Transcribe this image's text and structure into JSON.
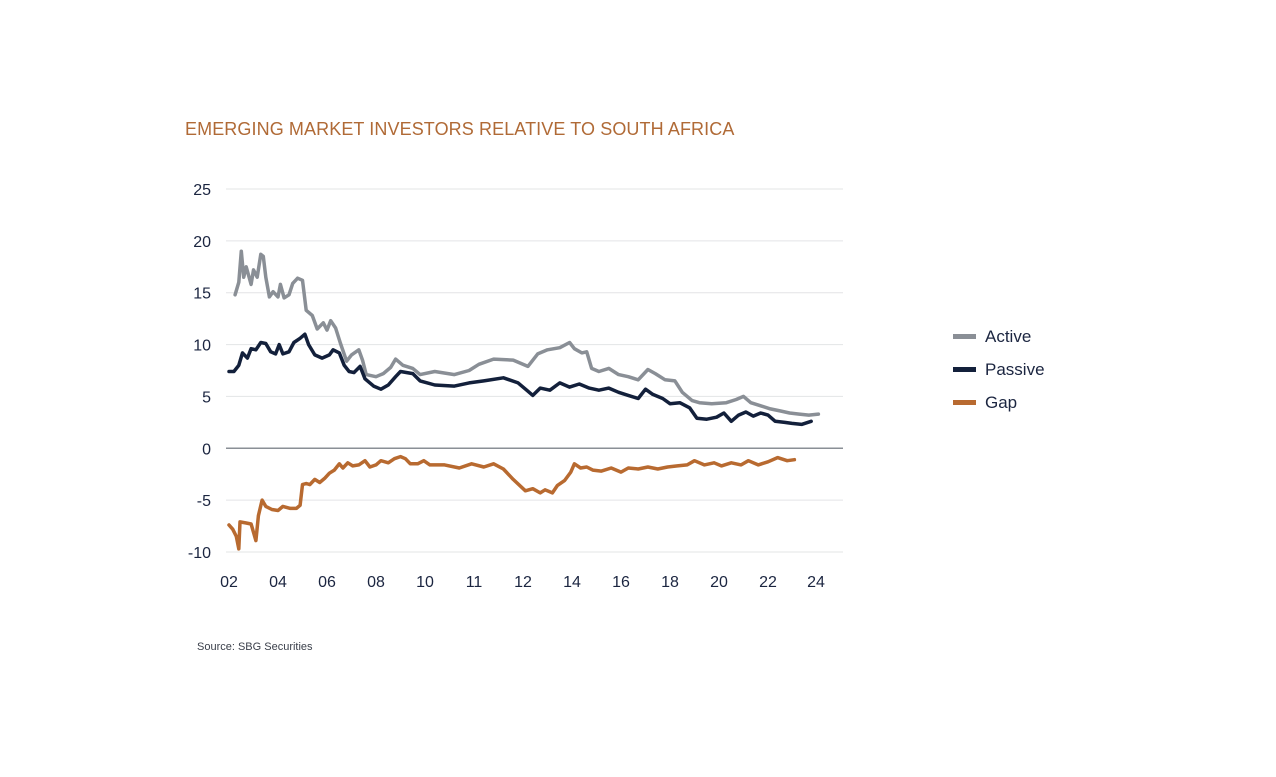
{
  "page": {
    "title": "EMERGING MARKET INVESTORS RELATIVE TO SOUTH AFRICA",
    "source": "Source: SBG Securities",
    "title_color": "#b06a36"
  },
  "chart_data": {
    "type": "line",
    "title": "EMERGING MARKET INVESTORS RELATIVE TO SOUTH AFRICA",
    "xlabel": "",
    "ylabel": "",
    "xlim": [
      2002,
      2025
    ],
    "ylim": [
      -10,
      25
    ],
    "yticks": [
      25,
      20,
      15,
      10,
      5,
      0,
      -5,
      -10
    ],
    "xtick_labels": [
      "02",
      "04",
      "06",
      "08",
      "10",
      "11",
      "12",
      "14",
      "16",
      "18",
      "20",
      "22",
      "24"
    ],
    "xtick_values": [
      2002,
      2004,
      2006,
      2008,
      2010,
      2011,
      2012,
      2014,
      2016,
      2018,
      2020,
      2022,
      2024
    ],
    "grid": "horizontal",
    "legend_position": "right",
    "series": [
      {
        "name": "Active",
        "color": "#8a8f96",
        "points": [
          [
            2002.25,
            14.8
          ],
          [
            2002.4,
            16
          ],
          [
            2002.5,
            19
          ],
          [
            2002.6,
            16.5
          ],
          [
            2002.7,
            17.5
          ],
          [
            2002.9,
            15.8
          ],
          [
            2003.0,
            17.2
          ],
          [
            2003.15,
            16.5
          ],
          [
            2003.3,
            18.7
          ],
          [
            2003.4,
            18.5
          ],
          [
            2003.5,
            16.5
          ],
          [
            2003.65,
            14.6
          ],
          [
            2003.8,
            15.1
          ],
          [
            2004.0,
            14.6
          ],
          [
            2004.1,
            15.8
          ],
          [
            2004.25,
            14.5
          ],
          [
            2004.45,
            14.8
          ],
          [
            2004.6,
            15.9
          ],
          [
            2004.8,
            16.4
          ],
          [
            2005.0,
            16.2
          ],
          [
            2005.15,
            13.3
          ],
          [
            2005.4,
            12.8
          ],
          [
            2005.6,
            11.5
          ],
          [
            2005.85,
            12.1
          ],
          [
            2006.0,
            11.4
          ],
          [
            2006.15,
            12.3
          ],
          [
            2006.35,
            11.6
          ],
          [
            2006.55,
            10.1
          ],
          [
            2006.8,
            8.4
          ],
          [
            2007.0,
            9.0
          ],
          [
            2007.3,
            9.5
          ],
          [
            2007.45,
            8.5
          ],
          [
            2007.6,
            7.1
          ],
          [
            2008.0,
            6.9
          ],
          [
            2008.3,
            7.2
          ],
          [
            2008.6,
            7.8
          ],
          [
            2008.8,
            8.6
          ],
          [
            2009.1,
            8.0
          ],
          [
            2009.5,
            7.7
          ],
          [
            2009.8,
            7.1
          ],
          [
            2010.2,
            7.4
          ],
          [
            2010.6,
            7.1
          ],
          [
            2010.9,
            7.5
          ],
          [
            2011.1,
            8.1
          ],
          [
            2011.4,
            8.6
          ],
          [
            2011.8,
            8.5
          ],
          [
            2012.2,
            7.9
          ],
          [
            2012.6,
            9.1
          ],
          [
            2013.0,
            9.5
          ],
          [
            2013.5,
            9.7
          ],
          [
            2013.9,
            10.2
          ],
          [
            2014.1,
            9.6
          ],
          [
            2014.4,
            9.2
          ],
          [
            2014.6,
            9.3
          ],
          [
            2014.8,
            7.7
          ],
          [
            2015.1,
            7.4
          ],
          [
            2015.5,
            7.7
          ],
          [
            2015.9,
            7.1
          ],
          [
            2016.3,
            6.9
          ],
          [
            2016.7,
            6.6
          ],
          [
            2017.1,
            7.6
          ],
          [
            2017.4,
            7.2
          ],
          [
            2017.8,
            6.6
          ],
          [
            2018.2,
            6.5
          ],
          [
            2018.5,
            5.4
          ],
          [
            2018.9,
            4.6
          ],
          [
            2019.2,
            4.4
          ],
          [
            2019.7,
            4.3
          ],
          [
            2020.3,
            4.4
          ],
          [
            2020.7,
            4.7
          ],
          [
            2021.0,
            5.0
          ],
          [
            2021.3,
            4.4
          ],
          [
            2021.7,
            4.1
          ],
          [
            2022.1,
            3.8
          ],
          [
            2022.5,
            3.6
          ],
          [
            2022.9,
            3.4
          ],
          [
            2023.3,
            3.3
          ],
          [
            2023.7,
            3.2
          ],
          [
            2024.1,
            3.3
          ]
        ]
      },
      {
        "name": "Passive",
        "color": "#13203b",
        "points": [
          [
            2002.0,
            7.4
          ],
          [
            2002.2,
            7.4
          ],
          [
            2002.4,
            8.0
          ],
          [
            2002.55,
            9.2
          ],
          [
            2002.75,
            8.7
          ],
          [
            2002.9,
            9.6
          ],
          [
            2003.1,
            9.5
          ],
          [
            2003.3,
            10.2
          ],
          [
            2003.5,
            10.1
          ],
          [
            2003.7,
            9.3
          ],
          [
            2003.9,
            9.1
          ],
          [
            2004.05,
            10.0
          ],
          [
            2004.2,
            9.1
          ],
          [
            2004.45,
            9.3
          ],
          [
            2004.65,
            10.2
          ],
          [
            2004.9,
            10.6
          ],
          [
            2005.1,
            11.0
          ],
          [
            2005.25,
            10.0
          ],
          [
            2005.5,
            9.0
          ],
          [
            2005.8,
            8.7
          ],
          [
            2006.1,
            9.0
          ],
          [
            2006.25,
            9.5
          ],
          [
            2006.5,
            9.2
          ],
          [
            2006.7,
            8.0
          ],
          [
            2006.9,
            7.4
          ],
          [
            2007.1,
            7.3
          ],
          [
            2007.35,
            7.9
          ],
          [
            2007.55,
            6.7
          ],
          [
            2007.9,
            6.0
          ],
          [
            2008.2,
            5.7
          ],
          [
            2008.5,
            6.1
          ],
          [
            2008.8,
            6.9
          ],
          [
            2009.0,
            7.4
          ],
          [
            2009.5,
            7.2
          ],
          [
            2009.8,
            6.5
          ],
          [
            2010.2,
            6.1
          ],
          [
            2010.6,
            6.0
          ],
          [
            2010.9,
            6.3
          ],
          [
            2011.2,
            6.5
          ],
          [
            2011.6,
            6.8
          ],
          [
            2011.9,
            6.3
          ],
          [
            2012.2,
            5.5
          ],
          [
            2012.4,
            5.1
          ],
          [
            2012.7,
            5.8
          ],
          [
            2013.1,
            5.6
          ],
          [
            2013.5,
            6.3
          ],
          [
            2013.9,
            5.9
          ],
          [
            2014.3,
            6.2
          ],
          [
            2014.7,
            5.8
          ],
          [
            2015.1,
            5.6
          ],
          [
            2015.5,
            5.8
          ],
          [
            2015.9,
            5.4
          ],
          [
            2016.3,
            5.1
          ],
          [
            2016.7,
            4.8
          ],
          [
            2017.0,
            5.7
          ],
          [
            2017.3,
            5.2
          ],
          [
            2017.7,
            4.8
          ],
          [
            2018.0,
            4.3
          ],
          [
            2018.4,
            4.4
          ],
          [
            2018.8,
            3.9
          ],
          [
            2019.1,
            2.9
          ],
          [
            2019.5,
            2.8
          ],
          [
            2019.9,
            3.0
          ],
          [
            2020.2,
            3.4
          ],
          [
            2020.5,
            2.6
          ],
          [
            2020.8,
            3.2
          ],
          [
            2021.1,
            3.5
          ],
          [
            2021.4,
            3.1
          ],
          [
            2021.7,
            3.4
          ],
          [
            2022.0,
            3.2
          ],
          [
            2022.3,
            2.6
          ],
          [
            2022.7,
            2.5
          ],
          [
            2023.0,
            2.4
          ],
          [
            2023.4,
            2.3
          ],
          [
            2023.8,
            2.6
          ]
        ]
      },
      {
        "name": "Gap",
        "color": "#b86a30",
        "points": [
          [
            2002.0,
            -7.4
          ],
          [
            2002.15,
            -7.8
          ],
          [
            2002.3,
            -8.5
          ],
          [
            2002.4,
            -9.7
          ],
          [
            2002.45,
            -7.1
          ],
          [
            2002.7,
            -7.2
          ],
          [
            2002.9,
            -7.3
          ],
          [
            2003.1,
            -8.9
          ],
          [
            2003.2,
            -6.5
          ],
          [
            2003.35,
            -5.0
          ],
          [
            2003.5,
            -5.6
          ],
          [
            2003.75,
            -5.9
          ],
          [
            2004.0,
            -6.0
          ],
          [
            2004.2,
            -5.6
          ],
          [
            2004.5,
            -5.8
          ],
          [
            2004.75,
            -5.8
          ],
          [
            2004.9,
            -5.5
          ],
          [
            2005.0,
            -3.5
          ],
          [
            2005.15,
            -3.4
          ],
          [
            2005.3,
            -3.5
          ],
          [
            2005.5,
            -3.0
          ],
          [
            2005.7,
            -3.3
          ],
          [
            2005.9,
            -2.9
          ],
          [
            2006.1,
            -2.4
          ],
          [
            2006.3,
            -2.1
          ],
          [
            2006.5,
            -1.5
          ],
          [
            2006.65,
            -1.9
          ],
          [
            2006.85,
            -1.4
          ],
          [
            2007.05,
            -1.7
          ],
          [
            2007.3,
            -1.6
          ],
          [
            2007.55,
            -1.2
          ],
          [
            2007.75,
            -1.8
          ],
          [
            2008.0,
            -1.6
          ],
          [
            2008.2,
            -1.2
          ],
          [
            2008.5,
            -1.4
          ],
          [
            2008.75,
            -1.0
          ],
          [
            2009.0,
            -0.8
          ],
          [
            2009.2,
            -1.0
          ],
          [
            2009.4,
            -1.5
          ],
          [
            2009.7,
            -1.5
          ],
          [
            2009.95,
            -1.2
          ],
          [
            2010.1,
            -1.6
          ],
          [
            2010.4,
            -1.6
          ],
          [
            2010.7,
            -1.9
          ],
          [
            2010.95,
            -1.5
          ],
          [
            2011.2,
            -1.8
          ],
          [
            2011.4,
            -1.5
          ],
          [
            2011.6,
            -2.0
          ],
          [
            2011.8,
            -3.0
          ],
          [
            2012.1,
            -4.1
          ],
          [
            2012.4,
            -3.9
          ],
          [
            2012.7,
            -4.3
          ],
          [
            2012.9,
            -4.0
          ],
          [
            2013.2,
            -4.3
          ],
          [
            2013.4,
            -3.6
          ],
          [
            2013.7,
            -3.1
          ],
          [
            2013.95,
            -2.3
          ],
          [
            2014.1,
            -1.5
          ],
          [
            2014.35,
            -1.9
          ],
          [
            2014.6,
            -1.8
          ],
          [
            2014.85,
            -2.1
          ],
          [
            2015.2,
            -2.2
          ],
          [
            2015.6,
            -1.9
          ],
          [
            2016.0,
            -2.3
          ],
          [
            2016.3,
            -1.9
          ],
          [
            2016.7,
            -2.0
          ],
          [
            2017.1,
            -1.8
          ],
          [
            2017.5,
            -2.0
          ],
          [
            2017.9,
            -1.8
          ],
          [
            2018.3,
            -1.7
          ],
          [
            2018.7,
            -1.6
          ],
          [
            2019.0,
            -1.2
          ],
          [
            2019.4,
            -1.6
          ],
          [
            2019.8,
            -1.4
          ],
          [
            2020.1,
            -1.7
          ],
          [
            2020.5,
            -1.4
          ],
          [
            2020.9,
            -1.6
          ],
          [
            2021.2,
            -1.2
          ],
          [
            2021.6,
            -1.6
          ],
          [
            2022.0,
            -1.3
          ],
          [
            2022.4,
            -0.9
          ],
          [
            2022.8,
            -1.2
          ],
          [
            2023.1,
            -1.1
          ]
        ]
      }
    ]
  }
}
